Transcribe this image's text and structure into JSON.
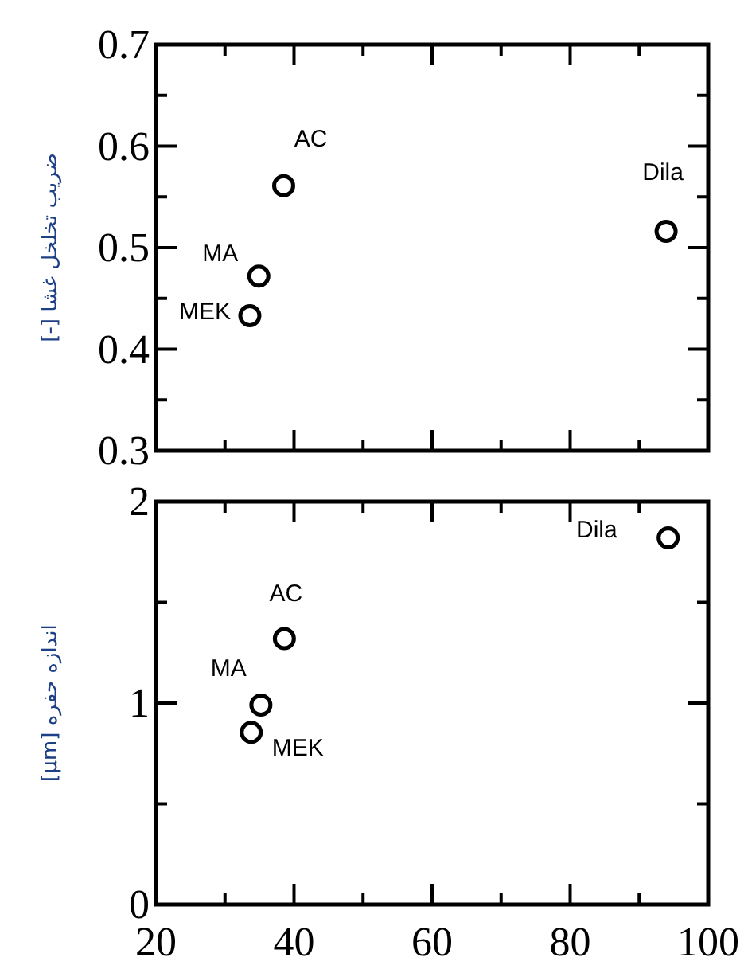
{
  "chart_data": [
    {
      "type": "scatter",
      "ylabel": "ضریب تخلخل غشا [-]",
      "x": [
        38.5,
        34.9,
        33.6,
        93.9
      ],
      "values": [
        0.561,
        0.472,
        0.433,
        0.516
      ],
      "marker": "circle",
      "color": "#000000",
      "xlim": [
        20,
        100
      ],
      "xticks": [
        20,
        {
          "value": 30,
          "label": null
        },
        40,
        {
          "value": 50,
          "label": null
        },
        60,
        {
          "value": 70,
          "label": null
        },
        80,
        {
          "value": 90,
          "label": null
        },
        100
      ],
      "ylim": [
        0.3,
        0.7
      ],
      "yticks": [
        0.3,
        {
          "value": 0.35,
          "label": null
        },
        0.4,
        {
          "value": 0.45,
          "label": null
        },
        0.5,
        {
          "value": 0.55,
          "label": null
        },
        0.6,
        {
          "value": 0.65,
          "label": null
        },
        0.7
      ],
      "tick_labels": "y",
      "annotations": [
        {
          "text": "AC",
          "x": 38.5,
          "y": 0.561
        },
        {
          "text": "MA",
          "x": 34.9,
          "y": 0.472
        },
        {
          "text": "MEK",
          "x": 33.6,
          "y": 0.433
        },
        {
          "text": "Dila",
          "x": 93.9,
          "y": 0.516
        }
      ]
    },
    {
      "type": "scatter",
      "ylabel": "اندازه حفره [µm]",
      "x": [
        38.6,
        35.2,
        33.8,
        94.2
      ],
      "values": [
        1.32,
        0.99,
        0.855,
        1.82
      ],
      "marker": "circle",
      "color": "#000000",
      "xlim": [
        20,
        100
      ],
      "xticks": [
        20,
        {
          "value": 30,
          "label": null
        },
        40,
        {
          "value": 50,
          "label": null
        },
        60,
        {
          "value": 70,
          "label": null
        },
        80,
        {
          "value": 90,
          "label": null
        },
        100
      ],
      "ylim": [
        0,
        2
      ],
      "yticks": [
        0,
        {
          "value": 0.5,
          "label": null
        },
        1,
        {
          "value": 1.5,
          "label": null
        },
        2
      ],
      "annotations": [
        {
          "text": "AC",
          "x": 38.6,
          "y": 1.32
        },
        {
          "text": "MA",
          "x": 35.2,
          "y": 0.99
        },
        {
          "text": "MEK",
          "x": 33.8,
          "y": 0.855
        },
        {
          "text": "Dila",
          "x": 94.2,
          "y": 1.82
        }
      ]
    }
  ]
}
